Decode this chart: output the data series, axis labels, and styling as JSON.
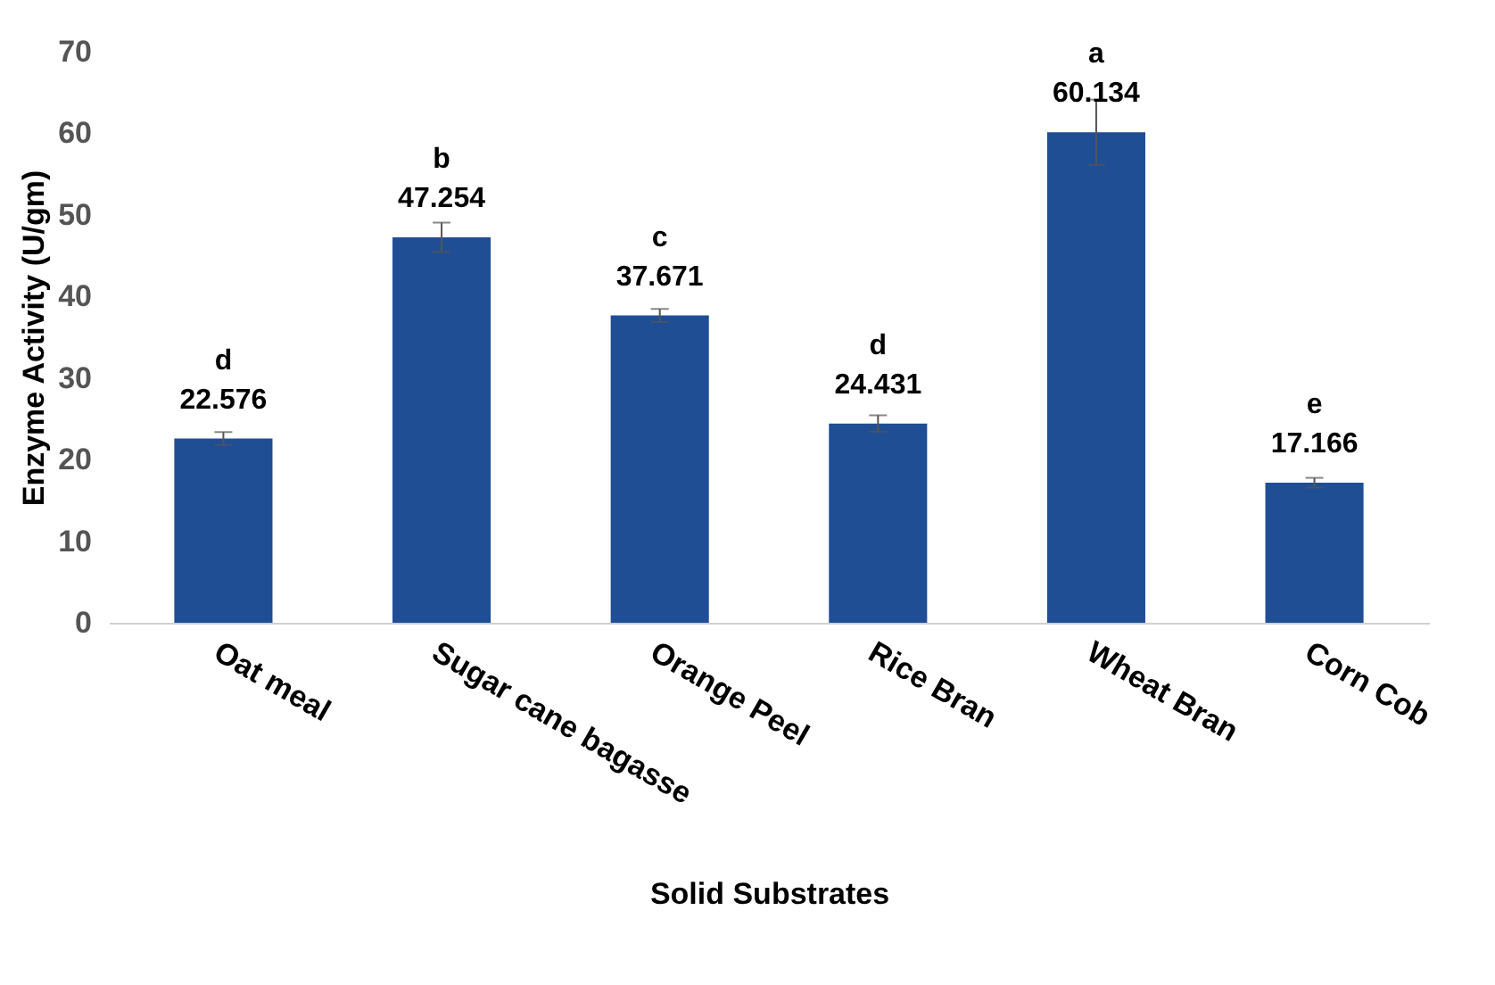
{
  "chart_data": {
    "type": "bar",
    "xlabel": "Solid Substrates",
    "ylabel": "Enzyme Activity (U/gm)",
    "categories": [
      "Oat meal",
      "Sugar cane bagasse",
      "Orange Peel",
      "Rice Bran",
      "Wheat Bran",
      "Corn Cob"
    ],
    "values": [
      22.576,
      47.254,
      37.671,
      24.431,
      60.134,
      17.166
    ],
    "errors": [
      0.8,
      1.8,
      0.8,
      1.0,
      4.0,
      0.6
    ],
    "color": "#1f4e95",
    "data_labels": true,
    "ylim": [
      0,
      70
    ],
    "yticks": [
      0,
      10,
      20,
      30,
      40,
      50,
      60,
      70
    ],
    "grid": false,
    "annotations": [
      {
        "text": "d",
        "x": "Oat meal",
        "y": 22.576
      },
      {
        "text": "b",
        "x": "Sugar cane bagasse",
        "y": 47.254
      },
      {
        "text": "c",
        "x": "Orange Peel",
        "y": 37.671
      },
      {
        "text": "d",
        "x": "Rice Bran",
        "y": 24.431
      },
      {
        "text": "a",
        "x": "Wheat Bran",
        "y": 60.134
      },
      {
        "text": "e",
        "x": "Corn Cob",
        "y": 17.166
      }
    ]
  }
}
